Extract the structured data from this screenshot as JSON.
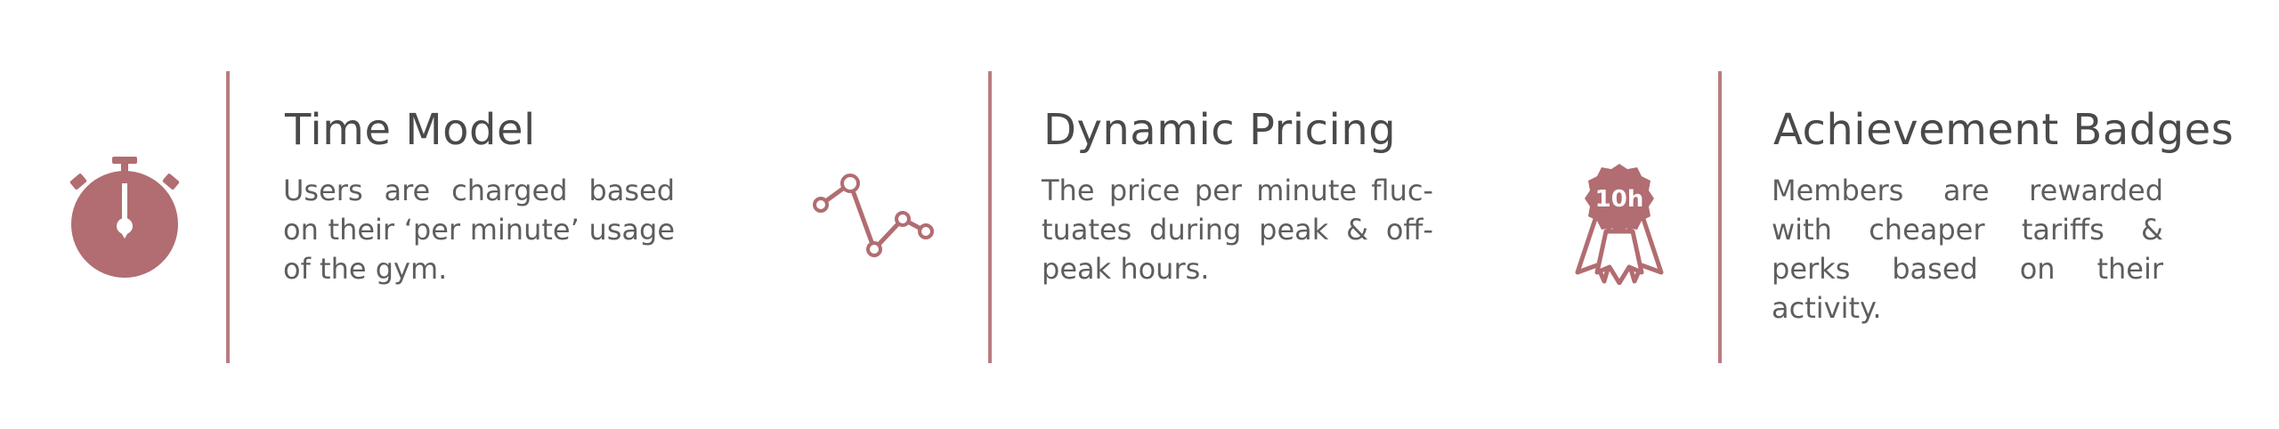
{
  "accent_color": "#b16d71",
  "features": [
    {
      "icon": "stopwatch-icon",
      "title": "Time Model",
      "description": "Users are charged based on their ‘per minute’ usage of the gym."
    },
    {
      "icon": "line-chart-icon",
      "title": "Dynamic Pricing",
      "description": "The price per minute fluc­tuates during peak & off-peak hours."
    },
    {
      "icon": "award-badge-icon",
      "title": "Achievement Badges",
      "description": "Members are rewarded with cheaper tariffs & perks based on their activity.",
      "badge_text": "10h"
    }
  ]
}
